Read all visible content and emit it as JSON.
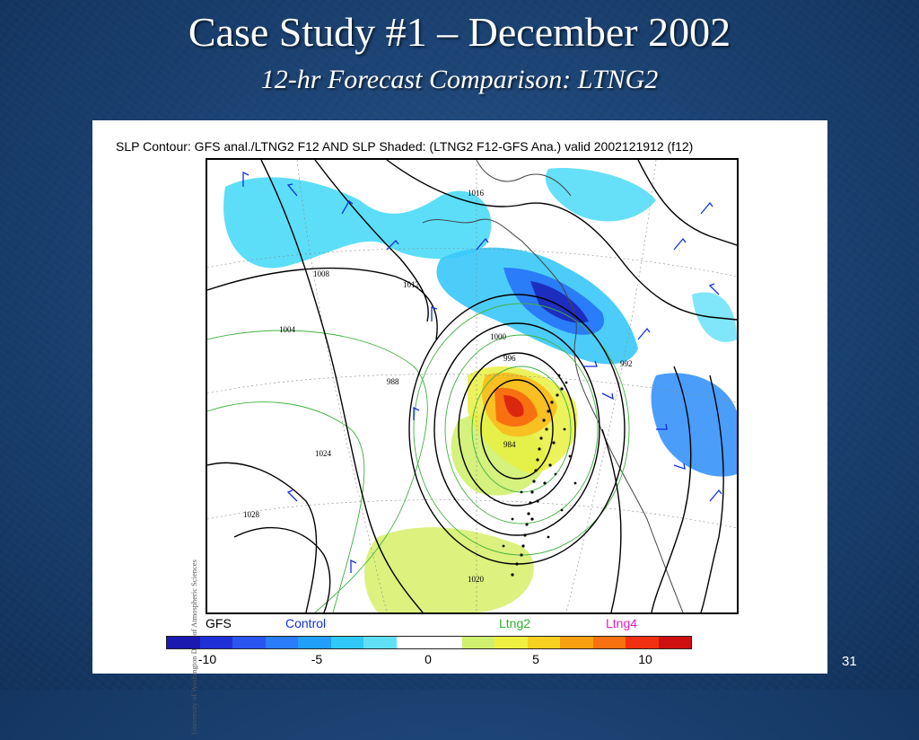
{
  "slide": {
    "title": "Case Study #1 – December 2002",
    "subtitle": "12-hr Forecast Comparison: LTNG2",
    "slide_number": "31"
  },
  "figure": {
    "header": "SLP Contour: GFS anal./LTNG2 F12 AND SLP Shaded: (LTNG2 F12-GFS Ana.) valid 2002121912 (f12)",
    "credit": "University of Washington Dept. of Atmospheric Sciences",
    "legend": {
      "gfs": "GFS",
      "control": "Control",
      "ltng2": "Ltng2",
      "ltng4": "Ltng4"
    },
    "colors": {
      "gfs": "#000000",
      "control": "#1030e0",
      "ltng2": "#30b030",
      "ltng4": "#e020c0"
    },
    "colorbar": {
      "ticks": [
        "-10",
        "-5",
        "0",
        "5",
        "10"
      ],
      "colors": [
        "#1a1ab0",
        "#2030d8",
        "#2a55f0",
        "#2a7cf8",
        "#20a0f8",
        "#30c8f8",
        "#60e0f8",
        "#ffffff",
        "#ffffff",
        "#d0f070",
        "#f0f040",
        "#f8d020",
        "#f8a010",
        "#f87010",
        "#f03010",
        "#d01010"
      ]
    },
    "contour_labels": [
      "1016",
      "1012",
      "1008",
      "1004",
      "1000",
      "996",
      "992",
      "988",
      "984",
      "1020",
      "1024",
      "1028"
    ]
  }
}
